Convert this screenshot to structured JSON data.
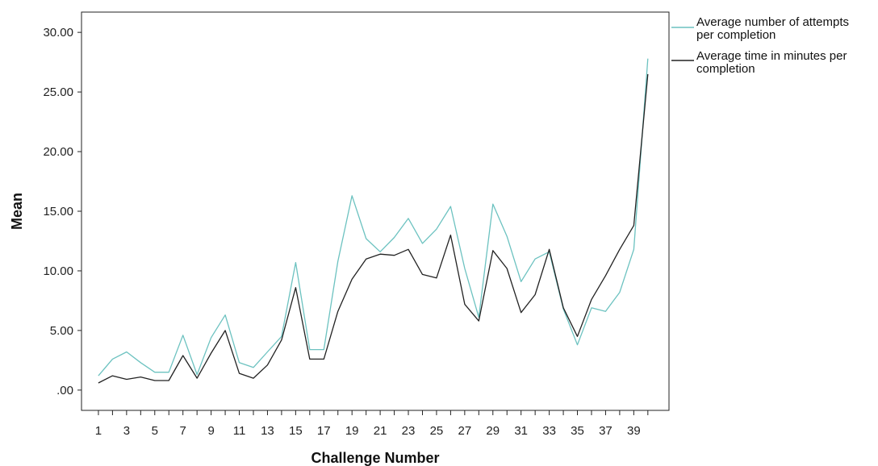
{
  "chart_data": {
    "type": "line",
    "xlabel": "Challenge Number",
    "ylabel": "Mean",
    "x": [
      1,
      2,
      3,
      4,
      5,
      6,
      7,
      8,
      9,
      10,
      11,
      12,
      13,
      14,
      15,
      16,
      17,
      18,
      19,
      20,
      21,
      22,
      23,
      24,
      25,
      26,
      27,
      28,
      29,
      30,
      31,
      32,
      33,
      34,
      35,
      36,
      37,
      38,
      39,
      40
    ],
    "xticks": [
      "1",
      "3",
      "5",
      "7",
      "9",
      "11",
      "13",
      "15",
      "17",
      "19",
      "21",
      "23",
      "25",
      "27",
      "29",
      "31",
      "33",
      "35",
      "37",
      "39"
    ],
    "yticks": [
      ".00",
      "5.00",
      "10.00",
      "15.00",
      "20.00",
      "25.00",
      "30.00"
    ],
    "ylim": [
      -1.7,
      31.7
    ],
    "xlim": [
      -0.2,
      41.5
    ],
    "grid": false,
    "legend_position": "right",
    "series": [
      {
        "name": "Average number of attempts per completion",
        "color": "#6cc2c0",
        "values": [
          1.2,
          2.6,
          3.2,
          2.3,
          1.5,
          1.5,
          4.6,
          1.3,
          4.4,
          6.3,
          2.3,
          1.9,
          3.2,
          4.5,
          10.7,
          3.4,
          3.4,
          10.8,
          16.3,
          12.7,
          11.6,
          12.8,
          14.4,
          12.3,
          13.5,
          15.4,
          10.2,
          6.1,
          15.6,
          12.9,
          9.1,
          11.0,
          11.6,
          6.8,
          3.8,
          6.9,
          6.6,
          8.2,
          11.8,
          27.8
        ]
      },
      {
        "name": "Average time in minutes per completion",
        "color": "#222222",
        "values": [
          0.6,
          1.2,
          0.9,
          1.1,
          0.8,
          0.8,
          2.9,
          1.0,
          3.1,
          5.0,
          1.4,
          1.0,
          2.1,
          4.2,
          8.6,
          2.6,
          2.6,
          6.6,
          9.3,
          11.0,
          11.4,
          11.3,
          11.8,
          9.7,
          9.4,
          13.0,
          7.2,
          5.8,
          11.7,
          10.2,
          6.5,
          8.0,
          11.8,
          6.9,
          4.5,
          7.6,
          9.6,
          11.8,
          13.8,
          26.5
        ]
      }
    ]
  }
}
